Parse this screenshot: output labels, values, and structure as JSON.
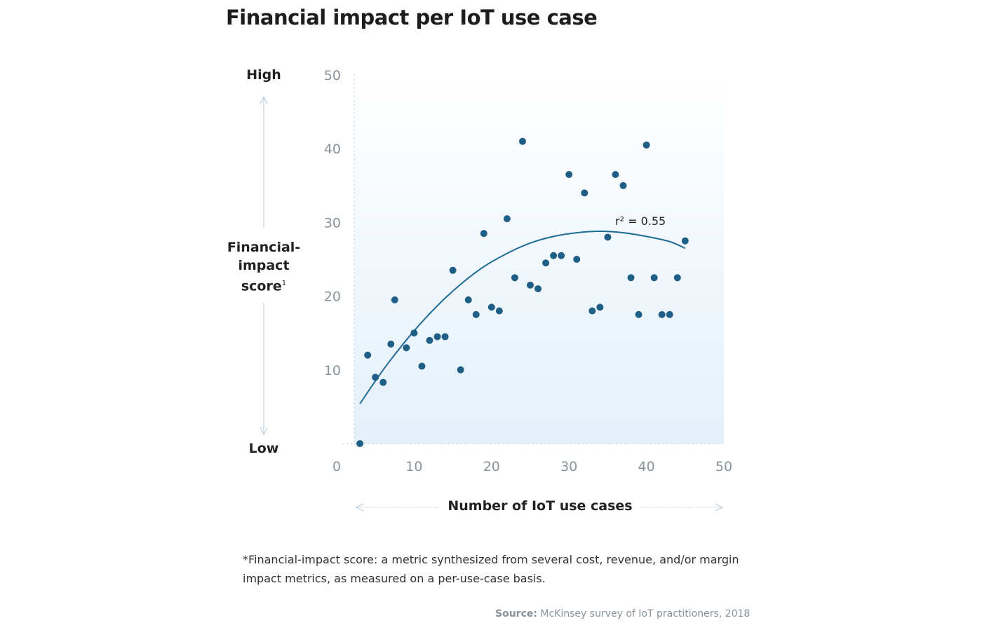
{
  "title": "Financial impact per IoT use case",
  "y_axis": {
    "high_label": "High",
    "low_label": "Low",
    "label_line1": "Financial-",
    "label_line2": "impact",
    "label_line3": "score",
    "label_sup": "1"
  },
  "x_axis_label": "Number of IoT use cases",
  "footnote": "*Financial-impact score: a metric synthesized from several cost, revenue, and/or margin impact metrics, as measured on a per-use-case basis.",
  "source_prefix": "Source:",
  "source_text": " McKinsey survey of IoT practitioners, 2018",
  "colors": {
    "point": "#1f5f86",
    "trend": "#1f6b96",
    "background_top": "#ffffff",
    "background_bottom": "#e4f0fa"
  },
  "chart_data": {
    "type": "scatter",
    "xlim": [
      0,
      50
    ],
    "ylim": [
      0,
      50
    ],
    "x_ticks": [
      "0",
      "10",
      "20",
      "30",
      "40",
      "50"
    ],
    "y_ticks": [
      "10",
      "20",
      "30",
      "40",
      "50"
    ],
    "annotation": "r² = 0.55",
    "points": [
      {
        "x": 3,
        "y": 0
      },
      {
        "x": 4,
        "y": 12
      },
      {
        "x": 5,
        "y": 9
      },
      {
        "x": 6,
        "y": 8.3
      },
      {
        "x": 7,
        "y": 13.5
      },
      {
        "x": 7.5,
        "y": 19.5
      },
      {
        "x": 9,
        "y": 13
      },
      {
        "x": 10,
        "y": 15
      },
      {
        "x": 11,
        "y": 10.5
      },
      {
        "x": 12,
        "y": 14
      },
      {
        "x": 13,
        "y": 14.5
      },
      {
        "x": 14,
        "y": 14.5
      },
      {
        "x": 15,
        "y": 23.5
      },
      {
        "x": 16,
        "y": 10
      },
      {
        "x": 17,
        "y": 19.5
      },
      {
        "x": 18,
        "y": 17.5
      },
      {
        "x": 19,
        "y": 28.5
      },
      {
        "x": 20,
        "y": 18.5
      },
      {
        "x": 21,
        "y": 18
      },
      {
        "x": 22,
        "y": 30.5
      },
      {
        "x": 23,
        "y": 22.5
      },
      {
        "x": 24,
        "y": 41
      },
      {
        "x": 25,
        "y": 21.5
      },
      {
        "x": 26,
        "y": 21
      },
      {
        "x": 27,
        "y": 24.5
      },
      {
        "x": 28,
        "y": 25.5
      },
      {
        "x": 29,
        "y": 25.5
      },
      {
        "x": 30,
        "y": 36.5
      },
      {
        "x": 31,
        "y": 25
      },
      {
        "x": 32,
        "y": 34
      },
      {
        "x": 33,
        "y": 18
      },
      {
        "x": 34,
        "y": 18.5
      },
      {
        "x": 35,
        "y": 28
      },
      {
        "x": 36,
        "y": 36.5
      },
      {
        "x": 37,
        "y": 35
      },
      {
        "x": 38,
        "y": 22.5
      },
      {
        "x": 39,
        "y": 17.5
      },
      {
        "x": 40,
        "y": 40.5
      },
      {
        "x": 41,
        "y": 22.5
      },
      {
        "x": 42,
        "y": 17.5
      },
      {
        "x": 43,
        "y": 17.5
      },
      {
        "x": 44,
        "y": 22.5
      },
      {
        "x": 45,
        "y": 27.5
      }
    ],
    "trendline": {
      "type": "quadratic",
      "x": [
        3,
        5,
        7,
        10,
        13,
        16,
        19,
        22,
        25,
        28,
        31,
        34,
        37,
        40,
        43,
        45
      ],
      "y": [
        5.4,
        8.5,
        11.4,
        15.3,
        18.7,
        21.6,
        24,
        25.8,
        27.2,
        28.1,
        28.6,
        28.8,
        28.6,
        28.1,
        27.4,
        26.5
      ]
    }
  }
}
